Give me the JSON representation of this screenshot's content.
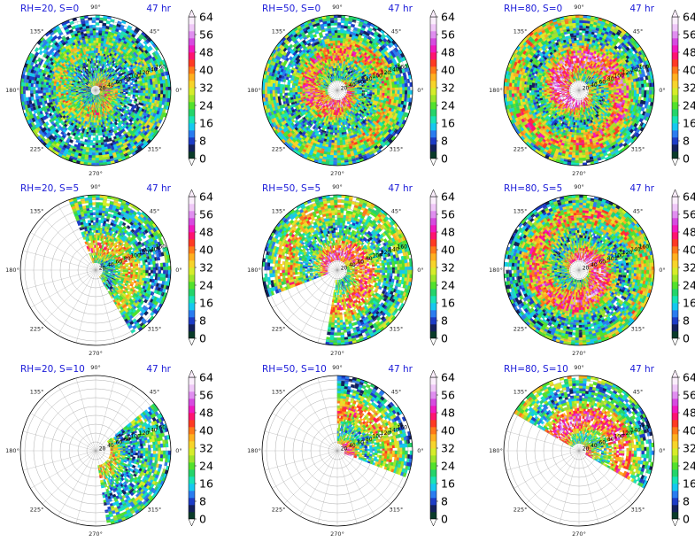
{
  "figure": {
    "background": "#ffffff"
  },
  "chart_data": [
    {
      "type": "heatmap",
      "projection": "polar",
      "title_left": "RH=20, S=0",
      "title_right": "47 hr",
      "angle_ticks": [
        "0°",
        "45°",
        "90°",
        "135°",
        "180°",
        "225°",
        "270°",
        "315°"
      ],
      "radial_ticks": [
        "20",
        "40",
        "60",
        "80",
        "100",
        "120",
        "140",
        "160"
      ],
      "coverage": {
        "inner": 0.08,
        "start": 0,
        "end": 360
      },
      "intensity": 0.55
    },
    {
      "type": "heatmap",
      "projection": "polar",
      "title_left": "RH=50, S=0",
      "title_right": "47 hr",
      "angle_ticks": [
        "0°",
        "45°",
        "90°",
        "135°",
        "180°",
        "225°",
        "270°",
        "315°"
      ],
      "radial_ticks": [
        "20",
        "40",
        "60",
        "80",
        "100",
        "120",
        "140",
        "160"
      ],
      "coverage": {
        "inner": 0.12,
        "start": 0,
        "end": 360
      },
      "intensity": 0.75
    },
    {
      "type": "heatmap",
      "projection": "polar",
      "title_left": "RH=80, S=0",
      "title_right": "47 hr",
      "angle_ticks": [
        "0°",
        "45°",
        "90°",
        "135°",
        "180°",
        "225°",
        "270°",
        "315°"
      ],
      "radial_ticks": [
        "20",
        "40",
        "60",
        "80",
        "100",
        "120",
        "140",
        "160"
      ],
      "coverage": {
        "inner": 0.12,
        "start": 0,
        "end": 360
      },
      "intensity": 0.9
    },
    {
      "type": "heatmap",
      "projection": "polar",
      "title_left": "RH=20, S=5",
      "title_right": "47 hr",
      "angle_ticks": [
        "0°",
        "45°",
        "90°",
        "135°",
        "180°",
        "225°",
        "270°",
        "315°"
      ],
      "radial_ticks": [
        "20",
        "40",
        "60",
        "80",
        "100",
        "120",
        "140",
        "160"
      ],
      "coverage": {
        "inner": 0.1,
        "start": -60,
        "end": 110
      },
      "intensity": 0.6
    },
    {
      "type": "heatmap",
      "projection": "polar",
      "title_left": "RH=50, S=5",
      "title_right": "47 hr",
      "angle_ticks": [
        "0°",
        "45°",
        "90°",
        "135°",
        "180°",
        "225°",
        "270°",
        "315°"
      ],
      "radial_ticks": [
        "20",
        "40",
        "60",
        "80",
        "100",
        "120",
        "140",
        "160"
      ],
      "coverage": {
        "inner": 0.12,
        "start": -100,
        "end": 200
      },
      "intensity": 0.75
    },
    {
      "type": "heatmap",
      "projection": "polar",
      "title_left": "RH=80, S=5",
      "title_right": "47 hr",
      "angle_ticks": [
        "0°",
        "45°",
        "90°",
        "135°",
        "180°",
        "225°",
        "270°",
        "315°"
      ],
      "radial_ticks": [
        "20",
        "40",
        "60",
        "80",
        "100",
        "120",
        "140",
        "160"
      ],
      "coverage": {
        "inner": 0.12,
        "start": 0,
        "end": 360
      },
      "intensity": 0.85
    },
    {
      "type": "heatmap",
      "projection": "polar",
      "title_left": "RH=20, S=10",
      "title_right": "47 hr",
      "angle_ticks": [
        "0°",
        "45°",
        "90°",
        "135°",
        "180°",
        "225°",
        "270°",
        "315°"
      ],
      "radial_ticks": [
        "20",
        "40",
        "60",
        "80",
        "100",
        "120",
        "140",
        "160"
      ],
      "coverage": {
        "inner": 0.2,
        "start": -80,
        "end": 40
      },
      "intensity": 0.5
    },
    {
      "type": "heatmap",
      "projection": "polar",
      "title_left": "RH=50, S=10",
      "title_right": "47 hr",
      "angle_ticks": [
        "0°",
        "45°",
        "90°",
        "135°",
        "180°",
        "225°",
        "270°",
        "315°"
      ],
      "radial_ticks": [
        "20",
        "40",
        "60",
        "80",
        "100",
        "120",
        "140",
        "160"
      ],
      "coverage": {
        "inner": 0.1,
        "start": -20,
        "end": 90
      },
      "intensity": 0.75
    },
    {
      "type": "heatmap",
      "projection": "polar",
      "title_left": "RH=80, S=10",
      "title_right": "47 hr",
      "angle_ticks": [
        "0°",
        "45°",
        "90°",
        "135°",
        "180°",
        "225°",
        "270°",
        "315°"
      ],
      "radial_ticks": [
        "20",
        "40",
        "60",
        "80",
        "100",
        "120",
        "140",
        "160"
      ],
      "coverage": {
        "inner": 0.1,
        "start": -30,
        "end": 150
      },
      "intensity": 0.85
    }
  ],
  "colorbar": {
    "ticks": [
      "0",
      "8",
      "16",
      "24",
      "32",
      "40",
      "48",
      "56",
      "64"
    ],
    "colors": [
      "#0a3b2a",
      "#13205c",
      "#1d3cc6",
      "#2a7cf0",
      "#15c8f0",
      "#18e3b6",
      "#25d46a",
      "#52e22c",
      "#9fe52a",
      "#d6ec2a",
      "#f7d42a",
      "#ffb020",
      "#ff7a18",
      "#ff3a24",
      "#ff1470",
      "#f01ac0",
      "#d64ae0",
      "#e08ef0",
      "#f0c8f8",
      "#fbeefc"
    ]
  }
}
